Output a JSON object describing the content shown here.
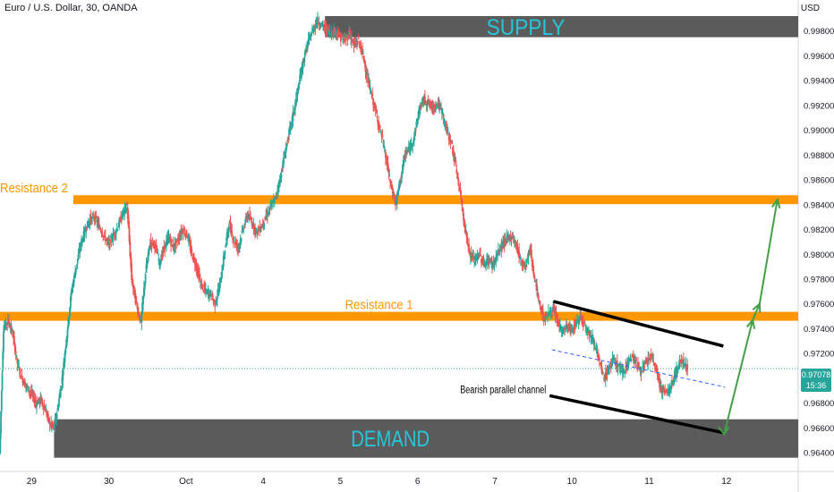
{
  "header": {
    "symbol_title": "Euro / U.S. Dollar, 30, OANDA",
    "currency": "USD"
  },
  "last_price": {
    "value": "0.97078",
    "countdown": "15:36"
  },
  "colors": {
    "up": "#26a69a",
    "down": "#ef5350",
    "zone": "#5b5b5b",
    "zone_label": "#26c6da",
    "resistance": "#ff9800",
    "channel": "#000000",
    "midline": "#2962ff",
    "projection": "#43a047"
  },
  "chart_data": {
    "type": "candlestick",
    "y_axis": {
      "ylim": [
        0.963,
        0.9992
      ],
      "ticks": [
        "0.99800",
        "0.99600",
        "0.99400",
        "0.99200",
        "0.99000",
        "0.98800",
        "0.98600",
        "0.98400",
        "0.98200",
        "0.98000",
        "0.97800",
        "0.97600",
        "0.97400",
        "0.97200",
        "0.96800",
        "0.96600",
        "0.96400"
      ]
    },
    "x_axis": {
      "ticks": [
        {
          "label": "29",
          "t": 1.0
        },
        {
          "label": "30",
          "t": 2.0
        },
        {
          "label": "Oct",
          "t": 3.0
        },
        {
          "label": "4",
          "t": 4.0
        },
        {
          "label": "5",
          "t": 5.0
        },
        {
          "label": "6",
          "t": 6.0
        },
        {
          "label": "7",
          "t": 7.0
        },
        {
          "label": "10",
          "t": 8.0
        },
        {
          "label": "11",
          "t": 9.0
        },
        {
          "label": "12",
          "t": 10.0
        }
      ],
      "xlim": [
        0.59,
        10.93
      ]
    },
    "zones": [
      {
        "name": "supply",
        "label": "SUPPLY",
        "t_start": 4.8,
        "t_end": 10.93,
        "y_low": 0.9975,
        "y_high": 1.0001
      },
      {
        "name": "demand",
        "label": "DEMAND",
        "t_start": 1.29,
        "t_end": 10.93,
        "y_low": 0.9636,
        "y_high": 0.9667
      }
    ],
    "resistance_levels": [
      {
        "name": "resistance-2",
        "label": "Resistance 2",
        "t_start": 1.54,
        "t_end": 10.93,
        "y": 0.9844,
        "label_t": 1.03
      },
      {
        "name": "resistance-1",
        "label": "Resistance 1",
        "t_start": 0.59,
        "t_end": 10.93,
        "y": 0.975,
        "label_t": 5.5
      }
    ],
    "channel": {
      "label": "Bearish parallel channel",
      "upper": {
        "t1": 7.76,
        "y1": 0.9762,
        "t2": 9.96,
        "y2": 0.9726
      },
      "lower": {
        "t1": 7.71,
        "y1": 0.9686,
        "t2": 9.97,
        "y2": 0.9656
      },
      "mid": {
        "t1": 7.74,
        "y1": 0.9723,
        "t2": 9.98,
        "y2": 0.9693
      }
    },
    "projection": [
      {
        "t": 9.97,
        "y": 0.9655
      },
      {
        "t": 10.34,
        "y": 0.9747
      },
      {
        "t": 10.43,
        "y": 0.976
      },
      {
        "t": 10.66,
        "y": 0.9844
      }
    ],
    "price_path": [
      [
        0.59,
        0.964
      ],
      [
        0.64,
        0.974
      ],
      [
        0.7,
        0.9747
      ],
      [
        0.76,
        0.9735
      ],
      [
        0.82,
        0.9712
      ],
      [
        0.88,
        0.97
      ],
      [
        0.94,
        0.9693
      ],
      [
        1.0,
        0.9688
      ],
      [
        1.06,
        0.968
      ],
      [
        1.12,
        0.9683
      ],
      [
        1.18,
        0.9675
      ],
      [
        1.24,
        0.9663
      ],
      [
        1.29,
        0.966
      ],
      [
        1.34,
        0.9675
      ],
      [
        1.4,
        0.97
      ],
      [
        1.46,
        0.9735
      ],
      [
        1.52,
        0.977
      ],
      [
        1.58,
        0.979
      ],
      [
        1.64,
        0.9808
      ],
      [
        1.7,
        0.982
      ],
      [
        1.76,
        0.9828
      ],
      [
        1.82,
        0.983
      ],
      [
        1.88,
        0.9822
      ],
      [
        1.94,
        0.9815
      ],
      [
        2.0,
        0.9808
      ],
      [
        2.06,
        0.9815
      ],
      [
        2.12,
        0.9822
      ],
      [
        2.18,
        0.9832
      ],
      [
        2.24,
        0.984
      ],
      [
        2.3,
        0.978
      ],
      [
        2.36,
        0.976
      ],
      [
        2.42,
        0.9745
      ],
      [
        2.48,
        0.9785
      ],
      [
        2.54,
        0.981
      ],
      [
        2.6,
        0.9808
      ],
      [
        2.66,
        0.9793
      ],
      [
        2.72,
        0.9805
      ],
      [
        2.78,
        0.9814
      ],
      [
        2.84,
        0.9805
      ],
      [
        2.9,
        0.9812
      ],
      [
        2.96,
        0.982
      ],
      [
        3.02,
        0.9815
      ],
      [
        3.08,
        0.98
      ],
      [
        3.14,
        0.979
      ],
      [
        3.2,
        0.9775
      ],
      [
        3.26,
        0.977
      ],
      [
        3.32,
        0.9768
      ],
      [
        3.38,
        0.976
      ],
      [
        3.44,
        0.9775
      ],
      [
        3.5,
        0.98
      ],
      [
        3.56,
        0.9825
      ],
      [
        3.62,
        0.9812
      ],
      [
        3.68,
        0.9805
      ],
      [
        3.74,
        0.982
      ],
      [
        3.8,
        0.9832
      ],
      [
        3.86,
        0.9825
      ],
      [
        3.92,
        0.9818
      ],
      [
        3.98,
        0.9822
      ],
      [
        4.04,
        0.983
      ],
      [
        4.1,
        0.9838
      ],
      [
        4.16,
        0.9845
      ],
      [
        4.22,
        0.986
      ],
      [
        4.28,
        0.988
      ],
      [
        4.34,
        0.9898
      ],
      [
        4.4,
        0.9915
      ],
      [
        4.46,
        0.9935
      ],
      [
        4.52,
        0.9955
      ],
      [
        4.58,
        0.997
      ],
      [
        4.64,
        0.998
      ],
      [
        4.7,
        0.9988
      ],
      [
        4.76,
        0.9985
      ],
      [
        4.82,
        0.9982
      ],
      [
        4.88,
        0.9978
      ],
      [
        4.94,
        0.998
      ],
      [
        5.0,
        0.9975
      ],
      [
        5.06,
        0.9972
      ],
      [
        5.12,
        0.9978
      ],
      [
        5.18,
        0.9968
      ],
      [
        5.24,
        0.9972
      ],
      [
        5.3,
        0.996
      ],
      [
        5.36,
        0.994
      ],
      [
        5.42,
        0.9925
      ],
      [
        5.48,
        0.991
      ],
      [
        5.54,
        0.9895
      ],
      [
        5.6,
        0.9875
      ],
      [
        5.66,
        0.9855
      ],
      [
        5.72,
        0.984
      ],
      [
        5.78,
        0.986
      ],
      [
        5.84,
        0.988
      ],
      [
        5.9,
        0.9885
      ],
      [
        5.96,
        0.9895
      ],
      [
        6.02,
        0.9915
      ],
      [
        6.08,
        0.9925
      ],
      [
        6.14,
        0.9922
      ],
      [
        6.2,
        0.9918
      ],
      [
        6.26,
        0.9922
      ],
      [
        6.32,
        0.9915
      ],
      [
        6.38,
        0.99
      ],
      [
        6.44,
        0.989
      ],
      [
        6.5,
        0.987
      ],
      [
        6.56,
        0.9848
      ],
      [
        6.62,
        0.982
      ],
      [
        6.68,
        0.98
      ],
      [
        6.74,
        0.9795
      ],
      [
        6.8,
        0.98
      ],
      [
        6.86,
        0.9792
      ],
      [
        6.92,
        0.9795
      ],
      [
        6.98,
        0.9792
      ],
      [
        7.04,
        0.98
      ],
      [
        7.1,
        0.9808
      ],
      [
        7.16,
        0.9812
      ],
      [
        7.22,
        0.9815
      ],
      [
        7.28,
        0.9808
      ],
      [
        7.34,
        0.9795
      ],
      [
        7.4,
        0.979
      ],
      [
        7.46,
        0.9805
      ],
      [
        7.52,
        0.978
      ],
      [
        7.58,
        0.976
      ],
      [
        7.64,
        0.9748
      ],
      [
        7.7,
        0.9752
      ],
      [
        7.76,
        0.9755
      ],
      [
        7.82,
        0.9745
      ],
      [
        7.88,
        0.9738
      ],
      [
        7.94,
        0.9742
      ],
      [
        8.0,
        0.9738
      ],
      [
        8.06,
        0.9745
      ],
      [
        8.12,
        0.975
      ],
      [
        8.18,
        0.9742
      ],
      [
        8.24,
        0.9735
      ],
      [
        8.3,
        0.9728
      ],
      [
        8.36,
        0.9712
      ],
      [
        8.42,
        0.97
      ],
      [
        8.48,
        0.9708
      ],
      [
        8.54,
        0.9715
      ],
      [
        8.6,
        0.971
      ],
      [
        8.66,
        0.9705
      ],
      [
        8.72,
        0.9712
      ],
      [
        8.78,
        0.9718
      ],
      [
        8.84,
        0.9712
      ],
      [
        8.9,
        0.9706
      ],
      [
        8.96,
        0.9712
      ],
      [
        9.02,
        0.9718
      ],
      [
        9.08,
        0.971
      ],
      [
        9.14,
        0.9695
      ],
      [
        9.2,
        0.9688
      ],
      [
        9.26,
        0.969
      ],
      [
        9.32,
        0.97
      ],
      [
        9.38,
        0.971
      ],
      [
        9.44,
        0.9715
      ],
      [
        9.5,
        0.9708
      ]
    ]
  }
}
